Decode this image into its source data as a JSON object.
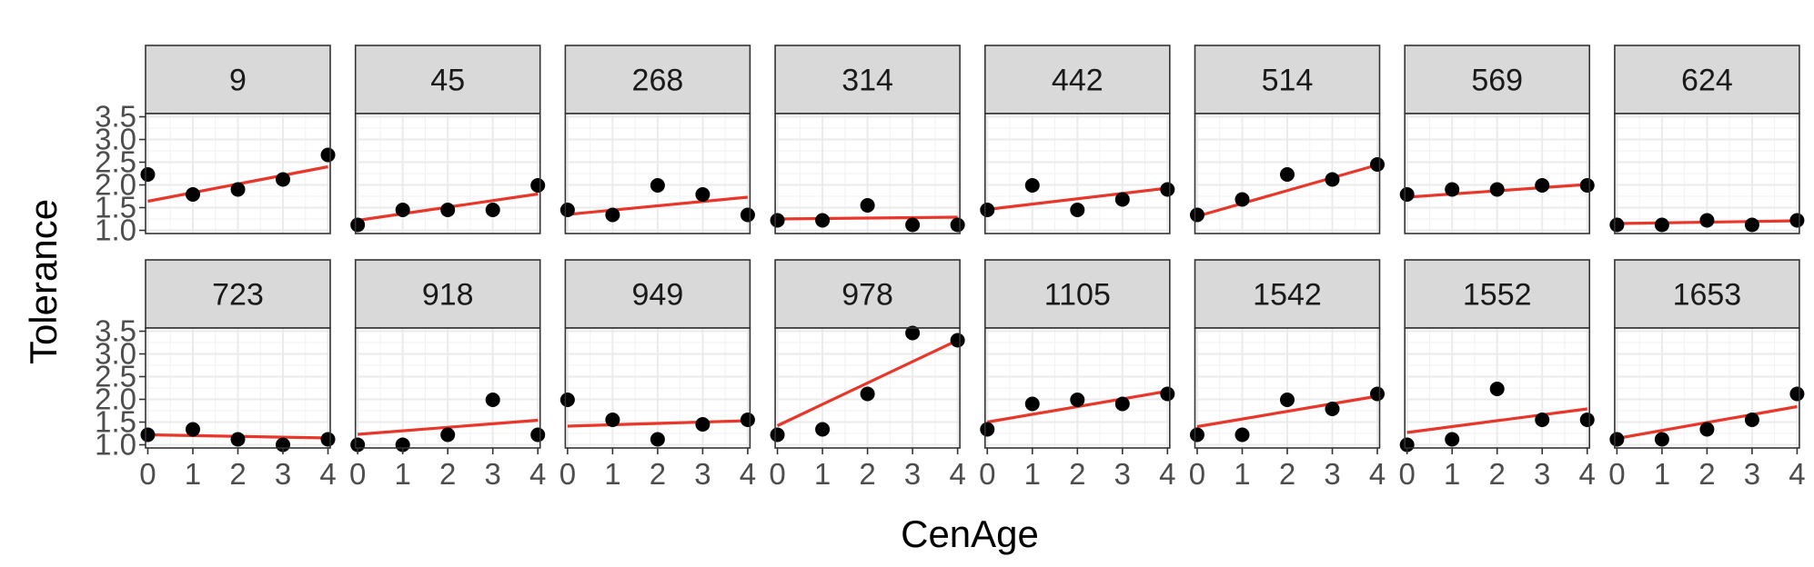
{
  "chart_data": {
    "type": "scatter",
    "xlabel": "CenAge",
    "ylabel": "Tolerance",
    "xlim": [
      -0.05,
      4.05
    ],
    "ylim": [
      0.93,
      3.57
    ],
    "x_ticks": [
      0,
      1,
      2,
      3,
      4
    ],
    "y_ticks": [
      "1.0",
      "1.5",
      "2.0",
      "2.5",
      "3.0",
      "3.5"
    ],
    "y_tick_values": [
      1.0,
      1.5,
      2.0,
      2.5,
      3.0,
      3.5
    ],
    "grid": true,
    "fit_line_color": "#e8372a",
    "point_color": "#000000",
    "x": [
      0,
      1,
      2,
      3,
      4
    ],
    "panels": [
      {
        "id": "9",
        "values": [
          2.23,
          1.79,
          1.9,
          2.12,
          2.66
        ],
        "fit": [
          1.64,
          2.4
        ]
      },
      {
        "id": "45",
        "values": [
          1.12,
          1.45,
          1.45,
          1.45,
          1.99
        ],
        "fit": [
          1.22,
          1.8
        ]
      },
      {
        "id": "268",
        "values": [
          1.45,
          1.34,
          1.99,
          1.79,
          1.34
        ],
        "fit": [
          1.35,
          1.73
        ]
      },
      {
        "id": "314",
        "values": [
          1.22,
          1.22,
          1.55,
          1.12,
          1.12
        ],
        "fit": [
          1.25,
          1.29
        ]
      },
      {
        "id": "442",
        "values": [
          1.45,
          1.99,
          1.45,
          1.68,
          1.9
        ],
        "fit": [
          1.46,
          1.93
        ]
      },
      {
        "id": "514",
        "values": [
          1.34,
          1.68,
          2.23,
          2.12,
          2.45
        ],
        "fit": [
          1.31,
          2.44
        ]
      },
      {
        "id": "569",
        "values": [
          1.79,
          1.9,
          1.9,
          1.99,
          1.99
        ],
        "fit": [
          1.73,
          2.01
        ]
      },
      {
        "id": "624",
        "values": [
          1.12,
          1.12,
          1.22,
          1.12,
          1.22
        ],
        "fit": [
          1.15,
          1.21
        ]
      },
      {
        "id": "723",
        "values": [
          1.22,
          1.34,
          1.12,
          1.0,
          1.12
        ],
        "fit": [
          1.22,
          1.15
        ]
      },
      {
        "id": "918",
        "values": [
          1.0,
          1.0,
          1.22,
          1.99,
          1.22
        ],
        "fit": [
          1.23,
          1.54
        ]
      },
      {
        "id": "949",
        "values": [
          1.99,
          1.55,
          1.12,
          1.45,
          1.55
        ],
        "fit": [
          1.41,
          1.53
        ]
      },
      {
        "id": "978",
        "values": [
          1.22,
          1.34,
          2.12,
          3.46,
          3.3
        ],
        "fit": [
          1.42,
          3.3
        ]
      },
      {
        "id": "1105",
        "values": [
          1.34,
          1.9,
          1.99,
          1.9,
          2.12
        ],
        "fit": [
          1.5,
          2.18
        ]
      },
      {
        "id": "1542",
        "values": [
          1.22,
          1.22,
          1.99,
          1.79,
          2.12
        ],
        "fit": [
          1.4,
          2.07
        ]
      },
      {
        "id": "1552",
        "values": [
          1.0,
          1.12,
          2.23,
          1.55,
          1.55
        ],
        "fit": [
          1.27,
          1.79
        ]
      },
      {
        "id": "1653",
        "values": [
          1.12,
          1.12,
          1.34,
          1.55,
          2.12
        ],
        "fit": [
          1.14,
          1.84
        ]
      }
    ]
  }
}
